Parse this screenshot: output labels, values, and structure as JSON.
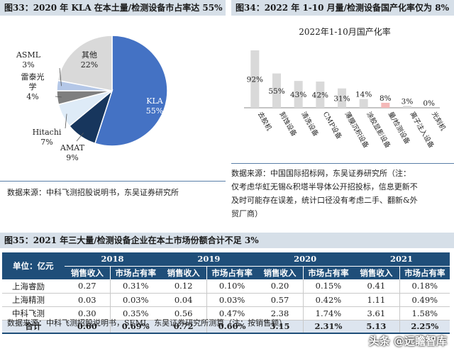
{
  "fig33": {
    "title": "图33：2020 年 KLA 在本土量/检测设备市占率达 55%",
    "source": "数据来源：中科飞测招股说明书，东吴证券研究所",
    "chart_data": {
      "type": "pie",
      "slices": [
        {
          "name": "KLA",
          "value": 55,
          "label": "55%",
          "color": "#4472c4"
        },
        {
          "name": "AMAT",
          "value": 9,
          "label": "9%",
          "color": "#17365d"
        },
        {
          "name": "Hitachi",
          "value": 7,
          "label": "7%",
          "color": "#deebf7"
        },
        {
          "name": "雷泰光学",
          "value": 4,
          "label": "4%",
          "color": "#7f7f7f"
        },
        {
          "name": "ASML",
          "value": 3,
          "label": "3%",
          "color": "#b4c7e7"
        },
        {
          "name": "其他",
          "value": 22,
          "label": "22%",
          "color": "#d9d9d9"
        }
      ]
    }
  },
  "fig34": {
    "title": "图34：2022 年 1-10 月量/检测设备国产化率仅为 8%",
    "source_lines": [
      "数据来源：中国国际招标网，东吴证券研究所（注：",
      "仅考虑华虹无锡&积塔半导体公开招投标，信息更新不",
      "及时可能存在误差，统计口径没有考虑二手、翻新&外",
      "贸厂商）"
    ],
    "chart_data": {
      "type": "bar",
      "title": "2022年1-10月国产化率",
      "categories": [
        "去胶机",
        "刻蚀设备",
        "清洗设备",
        "CMP设备",
        "薄膜沉积设备",
        "涂胶显影设备",
        "量/检测设备",
        "离子注入设备",
        "光刻机"
      ],
      "values": [
        92,
        55,
        43,
        42,
        31,
        14,
        8,
        3,
        0
      ],
      "value_labels": [
        "92%",
        "55%",
        "43%",
        "42%",
        "31%",
        "14%",
        "8%",
        "3%",
        "0%"
      ],
      "highlight_index": 6,
      "bar_color": "#d9d9d9",
      "highlight_color": "#f4b8b8",
      "ylim": [
        0,
        100
      ]
    }
  },
  "fig35": {
    "title": "图35：2021 年三大量/检测设备企业在本土市场份额合计不足 3%",
    "unit_label": "单位：亿元",
    "years": [
      "2018",
      "2019",
      "2020",
      "2021"
    ],
    "col_rev": "销售收入",
    "col_share": "市场占有率",
    "rows": [
      {
        "name": "上海睿励",
        "cells": [
          "0.27",
          "0.31%",
          "0.12",
          "0.10%",
          "0.20",
          "0.15%",
          "0.41",
          "0.18%"
        ]
      },
      {
        "name": "上海精测",
        "cells": [
          "0.03",
          "0.03%",
          "0.04",
          "0.03%",
          "0.57",
          "0.42%",
          "1.11",
          "0.49%"
        ]
      },
      {
        "name": "中科飞测",
        "cells": [
          "0.30",
          "0.35%",
          "0.56",
          "0.47%",
          "2.38",
          "1.74%",
          "3.61",
          "1.58%"
        ]
      }
    ],
    "total": {
      "name": "合计",
      "cells": [
        "0.60",
        "0.69%",
        "0.72",
        "0.60%",
        "3.15",
        "2.31%",
        "5.13",
        "2.25%"
      ]
    },
    "source": "数据来源：中科飞测招股说明书，SEMI，东吴证券研究所测算（注：按销售额）"
  },
  "watermark": "头条 @远瞻智库"
}
